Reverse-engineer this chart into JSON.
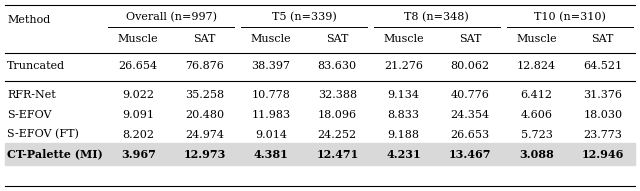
{
  "col_groups": [
    {
      "label": "Overall (n=997)",
      "sub": [
        "Muscle",
        "SAT"
      ]
    },
    {
      "label": "T5 (n=339)",
      "sub": [
        "Muscle",
        "SAT"
      ]
    },
    {
      "label": "T8 (n=348)",
      "sub": [
        "Muscle",
        "SAT"
      ]
    },
    {
      "label": "T10 (n=310)",
      "sub": [
        "Muscle",
        "SAT"
      ]
    }
  ],
  "rows": [
    {
      "method": "Truncated",
      "bold": false,
      "values": [
        "26.654",
        "76.876",
        "38.397",
        "83.630",
        "21.276",
        "80.062",
        "12.824",
        "64.521"
      ]
    },
    {
      "method": "RFR-Net",
      "bold": false,
      "values": [
        "9.022",
        "35.258",
        "10.778",
        "32.388",
        "9.134",
        "40.776",
        "6.412",
        "31.376"
      ]
    },
    {
      "method": "S-EFOV",
      "bold": false,
      "values": [
        "9.091",
        "20.480",
        "11.983",
        "18.096",
        "8.833",
        "24.354",
        "4.606",
        "18.030"
      ]
    },
    {
      "method": "S-EFOV (FT)",
      "bold": false,
      "values": [
        "8.202",
        "24.974",
        "9.014",
        "24.252",
        "9.188",
        "26.653",
        "5.723",
        "23.773"
      ]
    },
    {
      "method": "CT-Palette (MI)",
      "bold": true,
      "values": [
        "3.967",
        "12.973",
        "4.381",
        "12.471",
        "4.231",
        "13.467",
        "3.088",
        "12.946"
      ]
    }
  ],
  "background_color": "#ffffff",
  "shaded_color": "#d9d9d9",
  "font_size": 8.0,
  "figwidth": 6.4,
  "figheight": 1.91,
  "dpi": 100
}
